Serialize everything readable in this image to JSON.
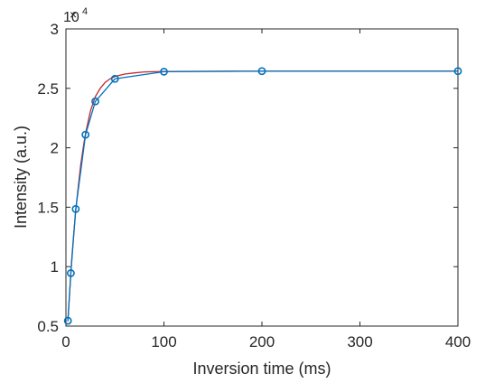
{
  "chart_data": {
    "type": "line",
    "title": "",
    "xlabel": "Inversion time (ms)",
    "ylabel": "Intensity (a.u.)",
    "x_ticks": [
      0,
      100,
      200,
      300,
      400
    ],
    "y_ticks": [
      0.5,
      1,
      1.5,
      2,
      2.5,
      3
    ],
    "y_tick_labels": [
      "0.5",
      "1",
      "1.5",
      "2",
      "2.5",
      "3"
    ],
    "x_tick_labels": [
      "0",
      "100",
      "200",
      "300",
      "400"
    ],
    "y_exponent_base": "10",
    "y_exponent_power": "4",
    "y_scale_factor": 10000,
    "xlim": [
      0,
      400
    ],
    "ylim": [
      5000,
      30000
    ],
    "grid": false,
    "series": [
      {
        "kind": "measured",
        "color": "#0072BD",
        "marker": "circle",
        "x": [
          2,
          5,
          10,
          20,
          30,
          50,
          100,
          200,
          400
        ],
        "y": [
          5450,
          9450,
          14850,
          21100,
          23900,
          25800,
          26400,
          26450,
          26450
        ]
      },
      {
        "kind": "fit",
        "color": "#C0282D",
        "marker": "none",
        "x": [
          2,
          4,
          6,
          8,
          10,
          12,
          15,
          18,
          20,
          25,
          30,
          35,
          40,
          45,
          50,
          60,
          70,
          80,
          90,
          100,
          150,
          200,
          300,
          400
        ],
        "y": [
          5400,
          8100,
          10700,
          12800,
          14700,
          16300,
          18500,
          20200,
          21200,
          23100,
          24300,
          25000,
          25500,
          25800,
          26000,
          26200,
          26300,
          26380,
          26400,
          26420,
          26440,
          26450,
          26450,
          26450
        ]
      }
    ]
  }
}
